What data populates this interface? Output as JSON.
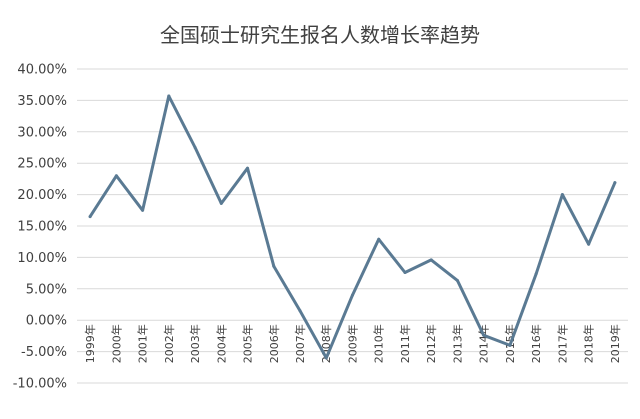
{
  "chart_data": {
    "type": "line",
    "title": "全国硕士研究生报名人数增长率趋势",
    "xlabel": "",
    "ylabel": "",
    "categories": [
      "1999年",
      "2000年",
      "2001年",
      "2002年",
      "2003年",
      "2004年",
      "2005年",
      "2006年",
      "2007年",
      "2008年",
      "2009年",
      "2010年",
      "2011年",
      "2012年",
      "2013年",
      "2014年",
      "2015年",
      "2016年",
      "2017年",
      "2018年",
      "2019年"
    ],
    "series": [
      {
        "values": [
          16.5,
          23.0,
          17.5,
          35.7,
          27.5,
          18.6,
          24.2,
          8.6,
          1.5,
          -6.0,
          4.0,
          12.9,
          7.6,
          9.6,
          6.3,
          -2.4,
          -4.0,
          7.4,
          20.0,
          12.1,
          21.9
        ]
      }
    ],
    "ylim": [
      -10,
      40
    ],
    "yticks": [
      "-10.00%",
      "-5.00%",
      "0.00%",
      "5.00%",
      "10.00%",
      "15.00%",
      "20.00%",
      "25.00%",
      "30.00%",
      "35.00%",
      "40.00%"
    ],
    "grid": true,
    "legend": "none",
    "colors": {
      "line": "#5a7a93",
      "grid": "#d9d9d9",
      "text": "#404040"
    }
  }
}
